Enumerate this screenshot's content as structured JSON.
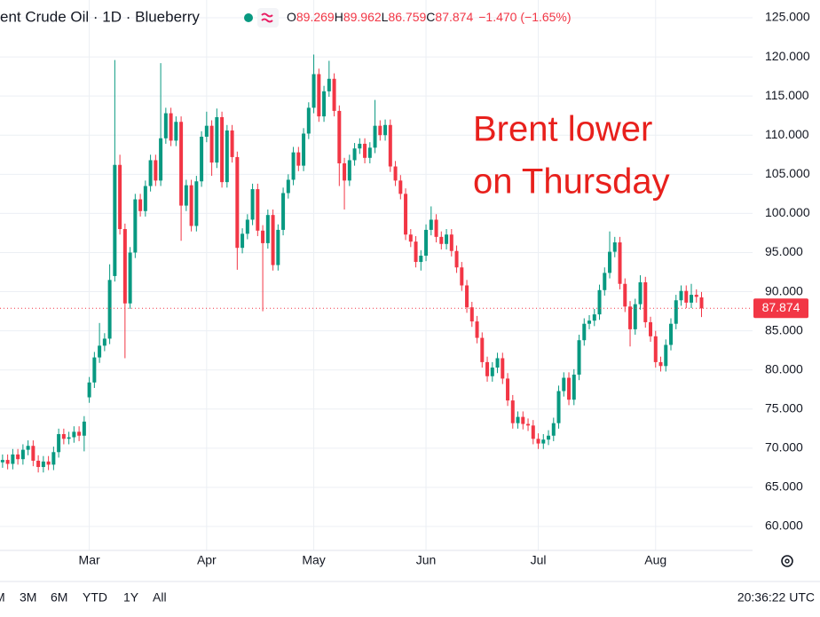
{
  "chart_data": {
    "type": "candlestick",
    "title": "ent Crude Oil · 1D · Blueberry",
    "header_values": [
      {
        "key": "O",
        "value": "89.269"
      },
      {
        "key": "H",
        "value": "89.962"
      },
      {
        "key": "L",
        "value": "86.759"
      },
      {
        "key": "C",
        "value": "87.874"
      },
      {
        "key": "",
        "value": "−1.470 (−1.65%)"
      }
    ],
    "annotation": [
      "Brent lower",
      "on Thursday"
    ],
    "last_price_label": "87.874",
    "time": "20:36:22 UTC",
    "ranges": [
      "M",
      "3M",
      "6M",
      "YTD",
      "1Y",
      "All"
    ],
    "up_color": "#089981",
    "down_color": "#f23645",
    "grid": true,
    "ylim": [
      56.94,
      127.27
    ],
    "yticks": [
      {
        "value": 60,
        "label": "60.000"
      },
      {
        "value": 65,
        "label": "65.000"
      },
      {
        "value": 70,
        "label": "70.000"
      },
      {
        "value": 75,
        "label": "75.000"
      },
      {
        "value": 80,
        "label": "80.000"
      },
      {
        "value": 85,
        "label": "85.000"
      },
      {
        "value": 90,
        "label": "90.000"
      },
      {
        "value": 95,
        "label": "95.000"
      },
      {
        "value": 100,
        "label": "100.000"
      },
      {
        "value": 105,
        "label": "105.000"
      },
      {
        "value": 110,
        "label": "110.000"
      },
      {
        "value": 115,
        "label": "115.000"
      },
      {
        "value": 120,
        "label": "120.000"
      },
      {
        "value": 125,
        "label": "125.000"
      }
    ],
    "xlim": [
      -0.5,
      147
    ],
    "xticks": [
      {
        "value": 17,
        "label": "Mar"
      },
      {
        "value": 40,
        "label": "Apr"
      },
      {
        "value": 61,
        "label": "May"
      },
      {
        "value": 83,
        "label": "Jun"
      },
      {
        "value": 105,
        "label": "Jul"
      },
      {
        "value": 128,
        "label": "Aug"
      }
    ],
    "open": [
      68.2,
      68.5,
      68.0,
      69.2,
      68.6,
      69.8,
      70.3,
      68.4,
      67.6,
      68.3,
      67.9,
      69.5,
      71.8,
      71.2,
      71.4,
      72.1,
      71.6,
      76.5,
      78.4,
      81.6,
      83.1,
      84.0,
      92.0,
      106.2,
      98.0,
      88.5,
      95.0,
      101.8,
      100.3,
      103.5,
      106.8,
      104.2,
      109.6,
      112.8,
      109.3,
      111.7,
      101.0,
      103.6,
      98.4,
      104.1,
      109.8,
      111.2,
      106.5,
      112.3,
      104.0,
      110.6,
      107.2,
      95.6,
      97.4,
      99.2,
      103.1,
      97.8,
      96.2,
      99.8,
      93.4,
      97.9,
      102.6,
      104.3,
      107.8,
      106.1,
      110.2,
      113.5,
      117.8,
      112.4,
      115.6,
      117.2,
      113.1,
      106.4,
      104.2,
      106.8,
      108.3,
      108.9,
      107.1,
      108.4,
      111.2,
      110.0,
      111.3,
      106.0,
      104.2,
      102.5,
      97.3,
      96.4,
      93.8,
      94.6,
      97.9,
      99.2,
      97.0,
      96.1,
      97.3,
      95.2,
      93.1,
      90.8,
      88.0,
      86.2,
      84.1,
      81.0,
      79.2,
      80.3,
      81.5,
      78.9,
      76.1,
      73.2,
      74.0,
      73.1,
      72.9,
      71.2,
      70.6,
      71.1,
      71.6,
      73.2,
      77.3,
      79.0,
      76.2,
      79.4,
      83.8,
      85.9,
      86.3,
      87.1,
      90.2,
      92.4,
      95.1,
      96.3,
      91.0,
      88.1,
      85.2,
      88.4,
      91.2,
      86.1,
      84.3,
      81.0,
      80.5,
      83.2,
      85.9,
      88.9,
      90.1,
      88.6,
      89.6,
      89.269
    ],
    "high": [
      69.2,
      69.2,
      69.9,
      69.9,
      70.5,
      71.0,
      71.0,
      69.1,
      69.0,
      69.0,
      70.2,
      72.5,
      72.5,
      72.1,
      72.8,
      72.8,
      74.1,
      79.1,
      82.3,
      86.0,
      84.7,
      93.5,
      119.6,
      107.5,
      98.7,
      95.7,
      102.5,
      102.5,
      104.2,
      107.5,
      107.5,
      119.2,
      113.5,
      113.5,
      112.4,
      112.4,
      104.3,
      104.3,
      104.8,
      110.5,
      113.0,
      111.9,
      113.4,
      113.0,
      111.3,
      111.3,
      107.9,
      98.1,
      99.9,
      103.8,
      103.8,
      98.5,
      100.5,
      100.5,
      98.6,
      103.3,
      105.0,
      108.5,
      108.5,
      110.9,
      114.2,
      120.3,
      118.5,
      116.3,
      119.5,
      117.9,
      113.8,
      107.1,
      107.5,
      109.0,
      109.6,
      109.6,
      109.1,
      114.5,
      111.9,
      112.0,
      112.0,
      106.7,
      104.9,
      103.2,
      98.0,
      97.1,
      95.3,
      98.6,
      100.9,
      99.9,
      97.7,
      98.0,
      98.0,
      95.9,
      93.8,
      91.5,
      88.7,
      86.9,
      84.8,
      81.7,
      81.0,
      82.2,
      82.2,
      79.6,
      76.8,
      74.7,
      74.7,
      73.8,
      73.6,
      71.9,
      71.8,
      72.3,
      73.9,
      78.0,
      79.7,
      79.7,
      80.1,
      84.5,
      86.6,
      87.0,
      87.8,
      90.9,
      93.1,
      97.7,
      97.0,
      97.0,
      91.7,
      88.8,
      89.1,
      92.1,
      91.9,
      86.8,
      85.0,
      81.7,
      83.9,
      86.6,
      89.6,
      90.8,
      90.8,
      91.0,
      90.3,
      89.962
    ],
    "low": [
      67.5,
      67.3,
      67.3,
      67.9,
      67.9,
      69.1,
      67.7,
      66.9,
      66.9,
      67.2,
      67.2,
      68.8,
      70.5,
      70.5,
      70.7,
      70.9,
      69.6,
      75.8,
      77.7,
      80.9,
      82.4,
      83.3,
      91.3,
      97.3,
      81.5,
      87.8,
      94.3,
      99.6,
      99.6,
      102.8,
      103.5,
      103.5,
      108.9,
      108.6,
      108.6,
      96.5,
      100.3,
      97.7,
      97.7,
      103.4,
      109.1,
      104.8,
      105.8,
      103.3,
      103.3,
      106.5,
      92.8,
      94.9,
      96.7,
      98.5,
      97.1,
      87.5,
      95.5,
      92.7,
      92.7,
      97.2,
      101.9,
      103.6,
      105.4,
      105.4,
      109.5,
      112.8,
      111.7,
      111.7,
      114.9,
      112.4,
      103.5,
      100.5,
      103.5,
      106.1,
      107.6,
      106.4,
      106.4,
      107.7,
      109.3,
      109.3,
      105.3,
      103.5,
      101.8,
      96.6,
      95.7,
      93.1,
      92.7,
      93.9,
      97.2,
      96.3,
      95.4,
      95.4,
      94.5,
      92.4,
      90.1,
      87.3,
      85.5,
      83.4,
      80.3,
      78.5,
      78.5,
      79.6,
      78.2,
      75.4,
      72.5,
      72.5,
      72.4,
      72.2,
      70.5,
      69.9,
      69.9,
      70.4,
      70.9,
      72.5,
      76.6,
      75.5,
      75.5,
      78.7,
      83.1,
      85.2,
      85.6,
      86.4,
      89.5,
      91.7,
      94.4,
      90.3,
      87.4,
      83.0,
      84.5,
      87.7,
      85.4,
      83.6,
      80.3,
      79.8,
      79.8,
      82.5,
      85.2,
      88.2,
      87.9,
      87.9,
      88.6,
      86.759
    ],
    "close": [
      68.5,
      68.0,
      69.2,
      68.6,
      69.8,
      70.3,
      68.4,
      67.6,
      68.3,
      67.9,
      69.5,
      71.8,
      71.2,
      71.4,
      72.1,
      71.6,
      73.4,
      78.4,
      81.6,
      83.1,
      84.0,
      91.5,
      106.2,
      98.0,
      88.5,
      95.0,
      101.8,
      100.3,
      103.5,
      106.8,
      104.2,
      109.6,
      112.8,
      109.3,
      111.7,
      101.0,
      103.6,
      98.4,
      104.1,
      109.8,
      111.2,
      106.5,
      112.3,
      104.0,
      110.6,
      107.2,
      95.6,
      97.4,
      99.2,
      103.1,
      97.8,
      96.2,
      99.8,
      93.4,
      97.9,
      102.6,
      104.3,
      107.8,
      106.1,
      110.2,
      113.5,
      117.8,
      112.4,
      115.6,
      117.2,
      113.1,
      106.4,
      104.2,
      106.8,
      108.3,
      108.9,
      107.1,
      108.4,
      111.2,
      110.0,
      111.3,
      106.0,
      104.2,
      102.5,
      97.3,
      96.4,
      93.8,
      94.6,
      97.9,
      99.2,
      97.0,
      96.1,
      97.3,
      95.2,
      93.1,
      90.8,
      88.0,
      86.2,
      84.1,
      81.0,
      79.2,
      80.3,
      81.5,
      78.9,
      76.1,
      73.2,
      74.0,
      73.1,
      72.9,
      71.2,
      70.6,
      71.1,
      71.6,
      73.2,
      77.3,
      79.0,
      76.2,
      79.4,
      83.8,
      85.9,
      86.3,
      87.1,
      90.2,
      92.4,
      95.1,
      96.3,
      91.0,
      88.1,
      85.2,
      88.4,
      91.2,
      86.1,
      84.3,
      81.0,
      80.5,
      83.2,
      85.9,
      88.9,
      90.1,
      88.6,
      89.6,
      89.344,
      87.874
    ]
  }
}
